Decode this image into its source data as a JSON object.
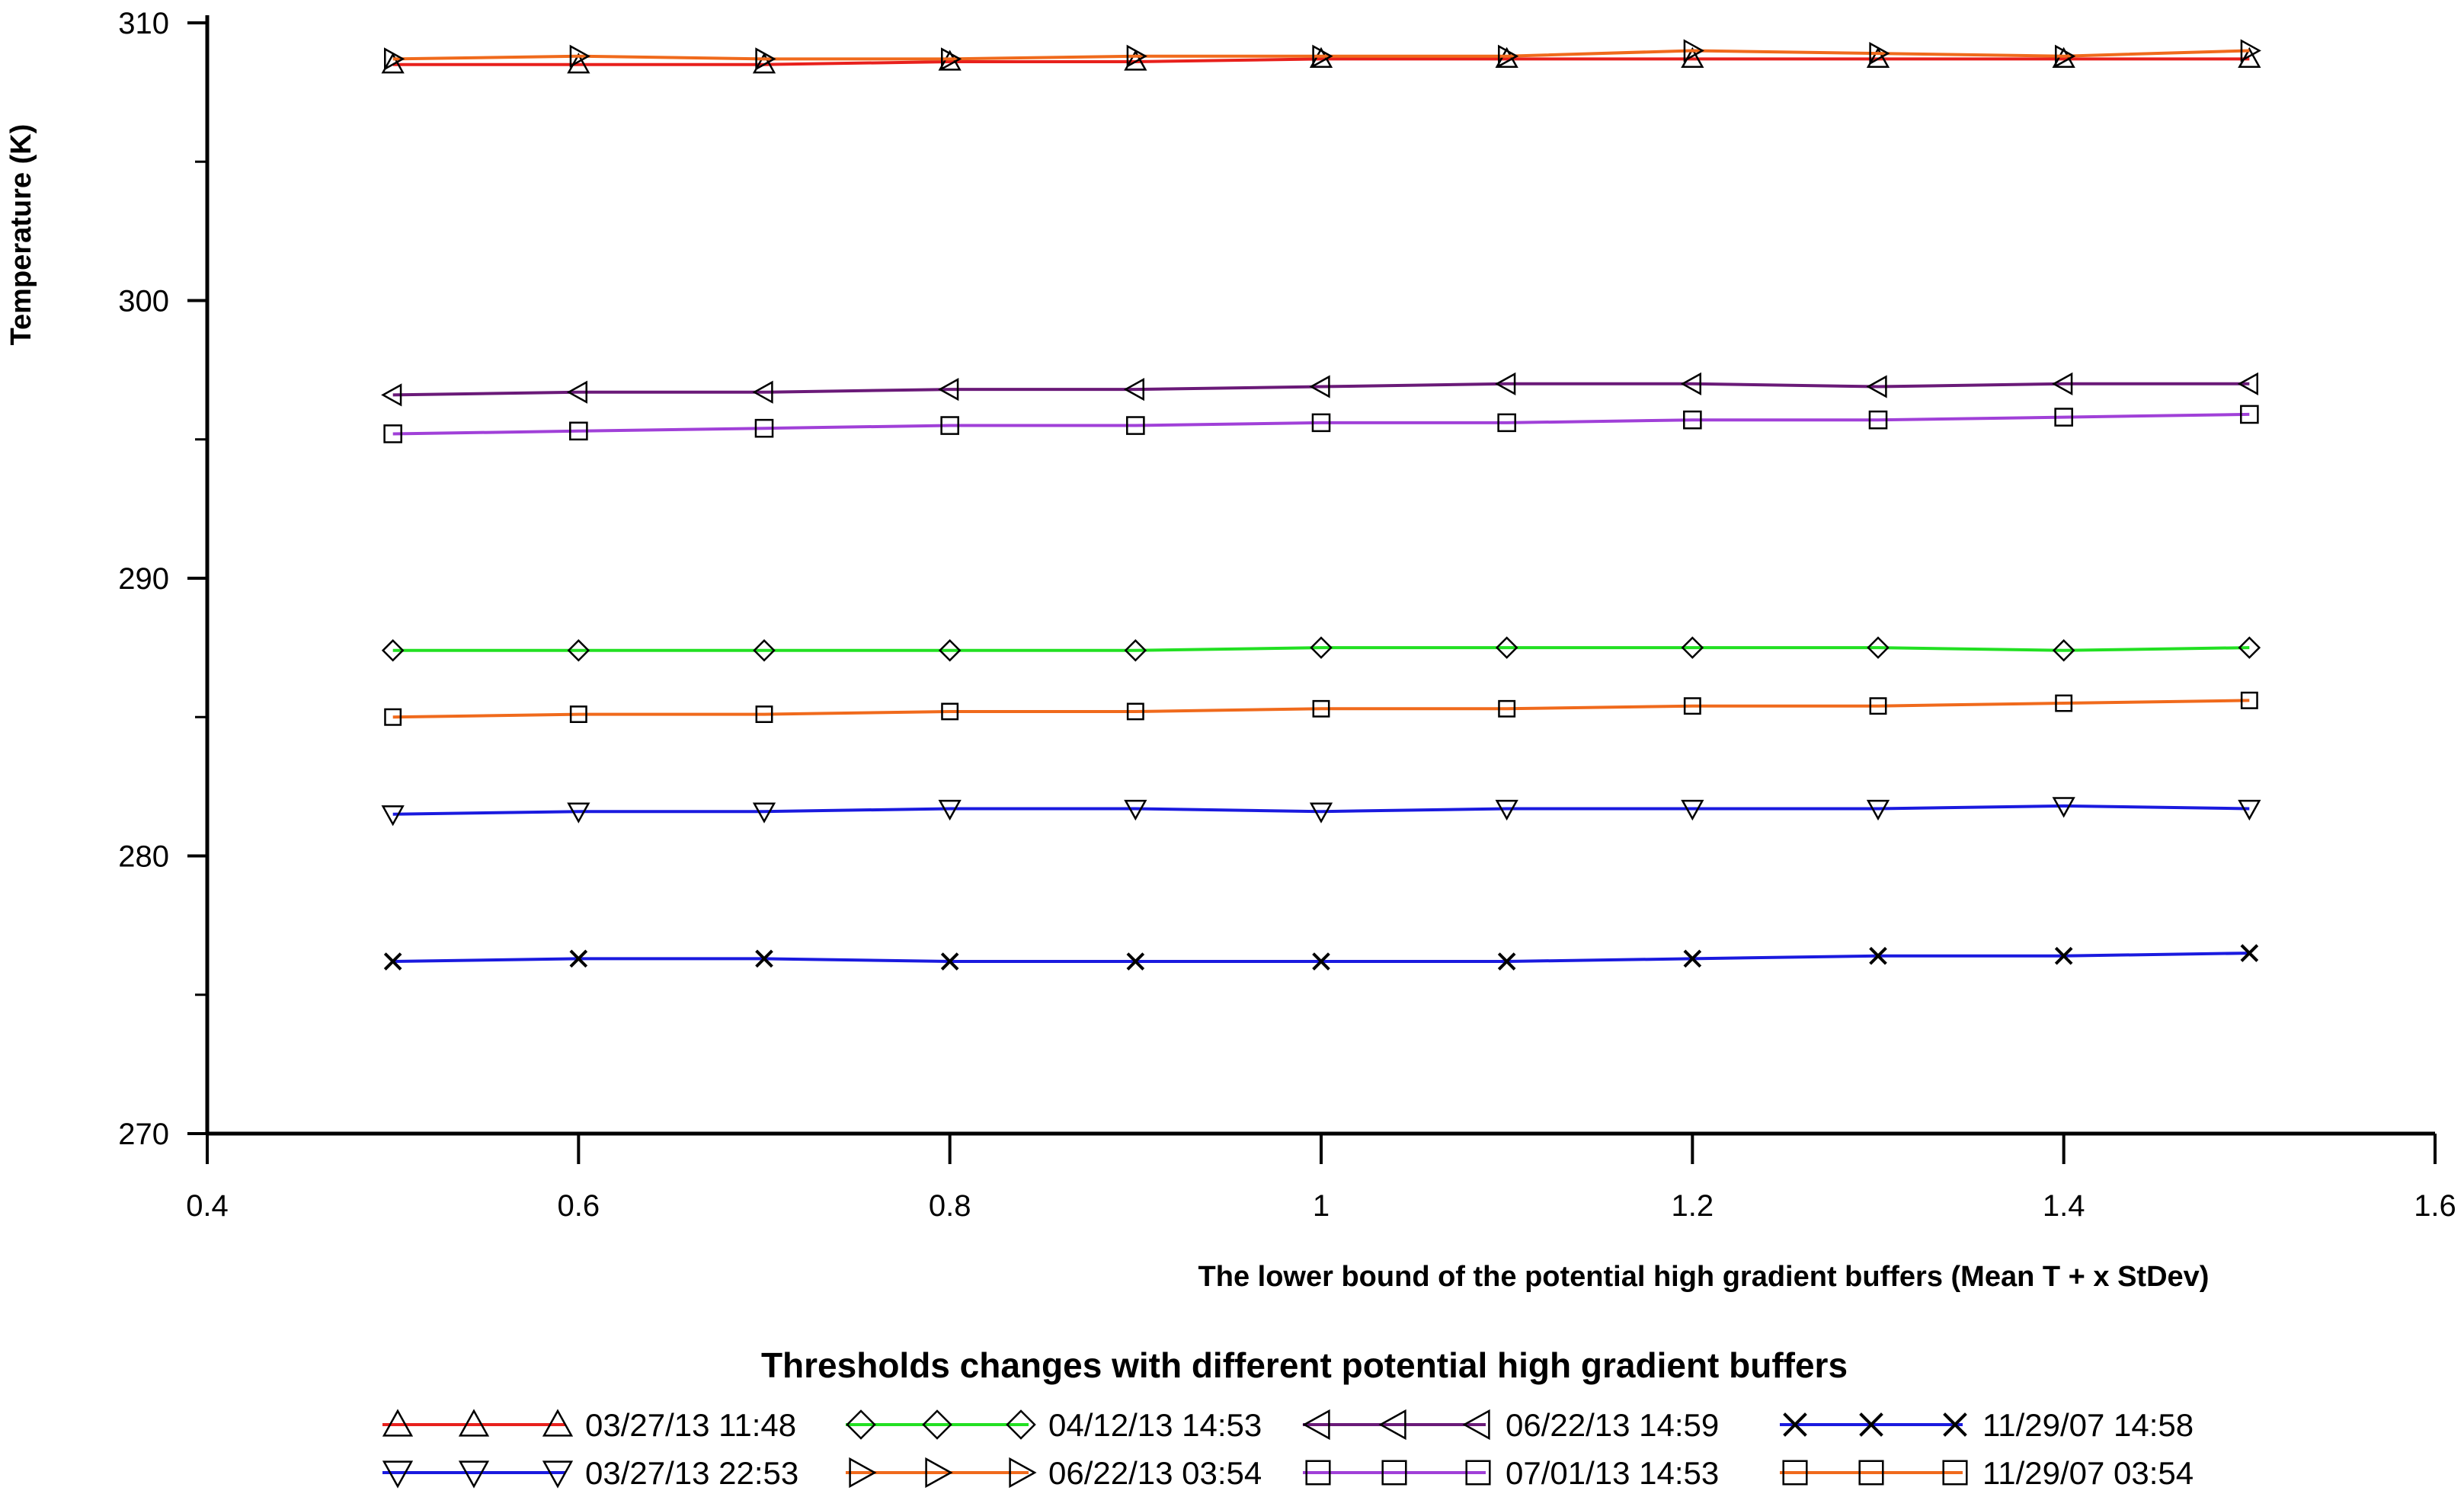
{
  "chart_data": {
    "type": "line",
    "title": "Thresholds changes with different potential high gradient buffers",
    "xlabel": "The lower bound of the potential high gradient buffers (Mean T  + x StDev)",
    "ylabel": "Temperature (K)",
    "xlim": [
      0.4,
      1.6
    ],
    "ylim": [
      270,
      310
    ],
    "x_ticks": [
      "0.4",
      "0.6",
      "0.8",
      "1",
      "1.2",
      "1.4",
      "1.6"
    ],
    "y_ticks": [
      "270",
      "280",
      "290",
      "300",
      "310"
    ],
    "grid": false,
    "legend_position": "bottom",
    "x": [
      0.5,
      0.6,
      0.7,
      0.8,
      0.9,
      1.0,
      1.1,
      1.2,
      1.3,
      1.4,
      1.5
    ],
    "series": [
      {
        "name": "03/27/13 11:48",
        "color": "#e8201c",
        "marker": "triangle-up",
        "values": [
          308.5,
          308.5,
          308.5,
          308.6,
          308.6,
          308.7,
          308.7,
          308.7,
          308.7,
          308.7,
          308.7
        ]
      },
      {
        "name": "03/27/13 22:53",
        "color": "#1a1adf",
        "marker": "triangle-down",
        "values": [
          281.5,
          281.6,
          281.6,
          281.7,
          281.7,
          281.6,
          281.7,
          281.7,
          281.7,
          281.8,
          281.7
        ]
      },
      {
        "name": "04/12/13 14:53",
        "color": "#22e022",
        "marker": "diamond",
        "values": [
          287.4,
          287.4,
          287.4,
          287.4,
          287.4,
          287.5,
          287.5,
          287.5,
          287.5,
          287.4,
          287.5
        ]
      },
      {
        "name": "06/22/13 03:54",
        "color": "#f06a1c",
        "marker": "triangle-right",
        "values": [
          308.7,
          308.8,
          308.7,
          308.7,
          308.8,
          308.8,
          308.8,
          309.0,
          308.9,
          308.8,
          309.0
        ]
      },
      {
        "name": "06/22/13 14:59",
        "color": "#6a1a78",
        "marker": "triangle-left",
        "values": [
          296.6,
          296.7,
          296.7,
          296.8,
          296.8,
          296.9,
          297.0,
          297.0,
          296.9,
          297.0,
          297.0
        ]
      },
      {
        "name": "07/01/13 14:53",
        "color": "#a040d8",
        "marker": "square",
        "values": [
          295.2,
          295.3,
          295.4,
          295.5,
          295.5,
          295.6,
          295.6,
          295.7,
          295.7,
          295.8,
          295.9
        ]
      },
      {
        "name": "11/29/07 14:58",
        "color": "#1a1adf",
        "marker": "x",
        "values": [
          276.2,
          276.3,
          276.3,
          276.2,
          276.2,
          276.2,
          276.2,
          276.3,
          276.4,
          276.4,
          276.5
        ]
      },
      {
        "name": "11/29/07 03:54",
        "color": "#f06a1c",
        "marker": "square",
        "values": [
          285.0,
          285.1,
          285.1,
          285.2,
          285.2,
          285.3,
          285.3,
          285.4,
          285.4,
          285.5,
          285.6
        ]
      }
    ],
    "legend_order": [
      0,
      2,
      4,
      6,
      1,
      3,
      5,
      7
    ]
  }
}
